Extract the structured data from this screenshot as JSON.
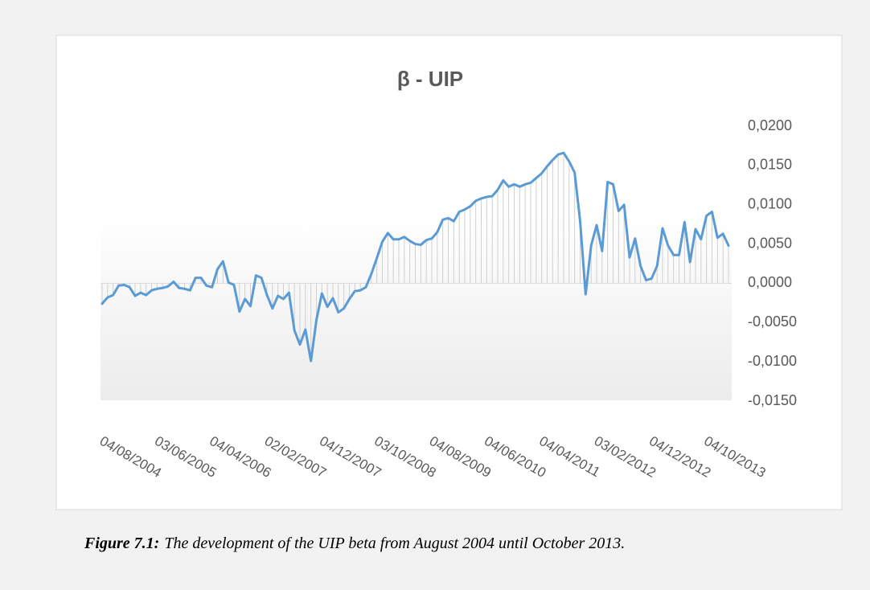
{
  "chart_data": {
    "type": "line",
    "title": "β - UIP",
    "categories": [
      "04/08/2004",
      null,
      null,
      null,
      null,
      null,
      null,
      null,
      null,
      null,
      "03/06/2005",
      null,
      null,
      null,
      null,
      null,
      null,
      null,
      null,
      null,
      "04/04/2006",
      null,
      null,
      null,
      null,
      null,
      null,
      null,
      null,
      null,
      "02/02/2007",
      null,
      null,
      null,
      null,
      null,
      null,
      null,
      null,
      null,
      "04/12/2007",
      null,
      null,
      null,
      null,
      null,
      null,
      null,
      null,
      null,
      "03/10/2008",
      null,
      null,
      null,
      null,
      null,
      null,
      null,
      null,
      null,
      "04/08/2009",
      null,
      null,
      null,
      null,
      null,
      null,
      null,
      null,
      null,
      "04/06/2010",
      null,
      null,
      null,
      null,
      null,
      null,
      null,
      null,
      null,
      "04/04/2011",
      null,
      null,
      null,
      null,
      null,
      null,
      null,
      null,
      null,
      "03/02/2012",
      null,
      null,
      null,
      null,
      null,
      null,
      null,
      null,
      null,
      "04/12/2012",
      null,
      null,
      null,
      null,
      null,
      null,
      null,
      null,
      null,
      "04/10/2013",
      null,
      null,
      null,
      null
    ],
    "series": [
      {
        "color": "#5b9bd5",
        "values": [
          -0.0026,
          -0.0018,
          -0.0015,
          -0.0003,
          -0.0002,
          -0.0005,
          -0.0016,
          -0.0012,
          -0.0015,
          -0.0009,
          -0.0007,
          -0.0006,
          -0.0004,
          0.0002,
          -0.0006,
          -0.0007,
          -0.0009,
          0.0007,
          0.0007,
          -0.0003,
          -0.0005,
          0.0018,
          0.0028,
          0.0001,
          -0.0002,
          -0.0036,
          -0.002,
          -0.0029,
          0.001,
          0.0007,
          -0.0015,
          -0.0032,
          -0.0016,
          -0.002,
          -0.0012,
          -0.006,
          -0.0078,
          -0.0059,
          -0.0099,
          -0.0047,
          -0.0013,
          -0.003,
          -0.0019,
          -0.0037,
          -0.0032,
          -0.002,
          -0.001,
          -0.0009,
          -0.0005,
          0.0012,
          0.0032,
          0.0053,
          0.0064,
          0.0056,
          0.0056,
          0.0059,
          0.0054,
          0.005,
          0.0049,
          0.0055,
          0.0057,
          0.0065,
          0.0081,
          0.0083,
          0.0079,
          0.0091,
          0.0094,
          0.0098,
          0.0105,
          0.0108,
          0.011,
          0.0111,
          0.0119,
          0.0131,
          0.0123,
          0.0126,
          0.0123,
          0.0126,
          0.0128,
          0.0134,
          0.014,
          0.0149,
          0.0157,
          0.0164,
          0.0166,
          0.0155,
          0.0141,
          0.0079,
          -0.0014,
          0.0048,
          0.0074,
          0.0041,
          0.0129,
          0.0126,
          0.0092,
          0.01,
          0.0033,
          0.0057,
          0.0022,
          0.0004,
          0.0006,
          0.0022,
          0.007,
          0.0048,
          0.0036,
          0.0036,
          0.0078,
          0.0027,
          0.0069,
          0.0056,
          0.0086,
          0.0091,
          0.0058,
          0.0063,
          0.0048
        ]
      }
    ],
    "drop_lines": true,
    "ylim": [
      -0.015,
      0.02
    ],
    "yticks": [
      {
        "value": -0.015,
        "label": "-0,0150"
      },
      {
        "value": -0.01,
        "label": "-0,0100"
      },
      {
        "value": -0.005,
        "label": "-0,0050"
      },
      {
        "value": 0,
        "label": "0,0000"
      },
      {
        "value": 0.005,
        "label": "0,0050"
      },
      {
        "value": 0.01,
        "label": "0,0100"
      },
      {
        "value": 0.015,
        "label": "0,0150"
      },
      {
        "value": 0.02,
        "label": "0,0200"
      }
    ],
    "caption": {
      "label": "Figure 7.1:",
      "text": "The development of the UIP beta from August 2004 until October 2013."
    }
  }
}
